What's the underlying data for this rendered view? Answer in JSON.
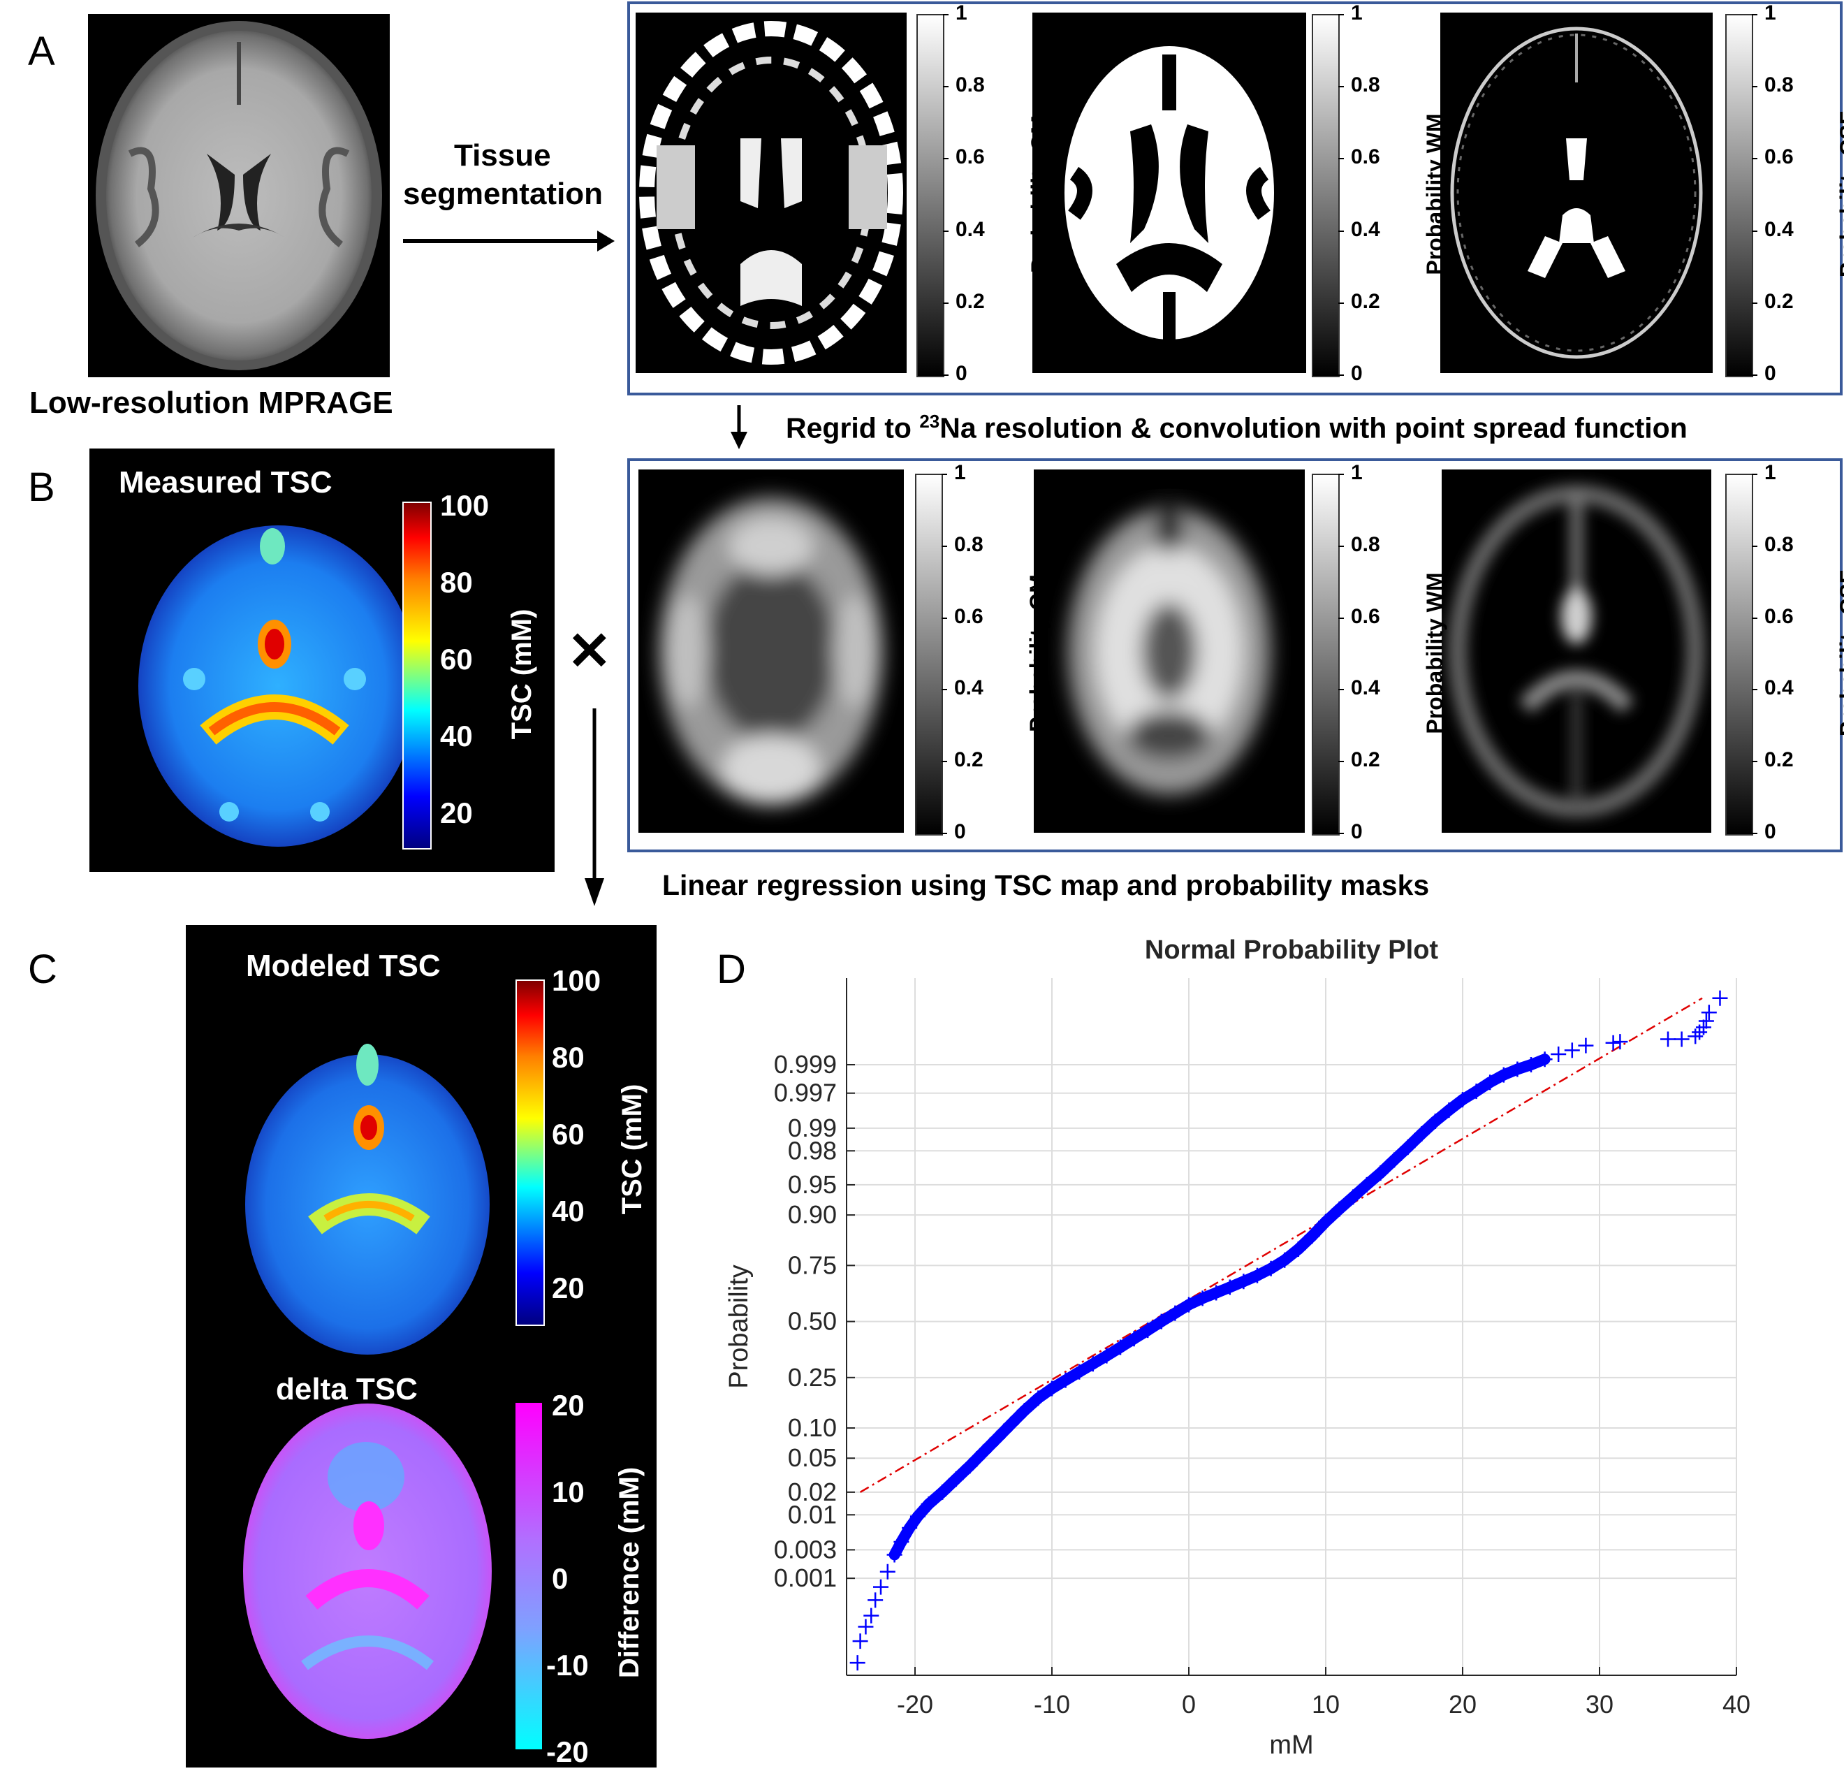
{
  "panels": {
    "A": {
      "letter": "A",
      "mprage_label": "Low-resolution MPRAGE",
      "arrow_label_line1": "Tissue",
      "arrow_label_line2": "segmentation",
      "maps": [
        {
          "title": "Probability GM"
        },
        {
          "title": "Probability WM"
        },
        {
          "title": "Probability CSF"
        }
      ],
      "colorbar_ticks": [
        "1",
        "0.8",
        "0.6",
        "0.4",
        "0.2",
        "0"
      ]
    },
    "regrid_label_pre": "Regrid to ",
    "regrid_label_sup": "23",
    "regrid_label_post": "Na resolution & convolution with point spread function",
    "B": {
      "letter": "B",
      "title": "Measured TSC",
      "colorbar_title": "TSC (mM)",
      "colorbar_ticks": [
        "100",
        "80",
        "60",
        "40",
        "20"
      ],
      "multiply_symbol": "✕",
      "maps": [
        {
          "title": "Probability GM"
        },
        {
          "title": "Probability WM"
        },
        {
          "title": "Probability CSF"
        }
      ]
    },
    "regression_label": "Linear regression using TSC map and probability masks",
    "C": {
      "letter": "C",
      "modeled_title": "Modeled TSC",
      "modeled_colorbar_title": "TSC (mM)",
      "modeled_colorbar_ticks": [
        "100",
        "80",
        "60",
        "40",
        "20"
      ],
      "delta_title": "delta TSC",
      "delta_colorbar_title": "Difference (mM)",
      "delta_colorbar_ticks": [
        "20",
        "10",
        "0",
        "-10",
        "-20"
      ]
    },
    "D": {
      "letter": "D"
    }
  },
  "colors": {
    "frame": "#3a5a9a",
    "data_marker": "#0000ff",
    "reference_line": "#e00000"
  },
  "chart_data": {
    "type": "scatter",
    "title": "Normal Probability Plot",
    "xlabel": "mM",
    "ylabel": "Probability",
    "xlim": [
      -25,
      40
    ],
    "x_ticks": [
      -20,
      -10,
      0,
      10,
      20,
      30,
      40
    ],
    "y_ticks": [
      0.001,
      0.003,
      0.01,
      0.02,
      0.05,
      0.1,
      0.25,
      0.5,
      0.75,
      0.9,
      0.95,
      0.98,
      0.99,
      0.997,
      0.999
    ],
    "y_tick_labels": [
      "0.001",
      "0.003",
      "0.01",
      "0.02",
      "0.05",
      "0.10",
      "0.25",
      "0.50",
      "0.75",
      "0.90",
      "0.95",
      "0.98",
      "0.99",
      "0.997",
      "0.999"
    ],
    "y_scale": "normal-probability",
    "grid": true,
    "series": [
      {
        "marker": "+",
        "points": [
          [
            -24.2,
            2e-05
          ],
          [
            -24.0,
            6e-05
          ],
          [
            -23.6,
            0.00012
          ],
          [
            -23.2,
            0.0002
          ],
          [
            -22.9,
            0.0004
          ],
          [
            -22.5,
            0.0007
          ],
          [
            -22.0,
            0.0013
          ],
          [
            -21.5,
            0.0025
          ],
          [
            -21.0,
            0.004
          ],
          [
            -20.4,
            0.0065
          ],
          [
            -19.8,
            0.0095
          ],
          [
            -19.0,
            0.014
          ],
          [
            -18.0,
            0.02
          ],
          [
            -17.0,
            0.029
          ],
          [
            -16.0,
            0.041
          ],
          [
            -15.0,
            0.058
          ],
          [
            -14.0,
            0.08
          ],
          [
            -13.0,
            0.108
          ],
          [
            -12.0,
            0.142
          ],
          [
            -11.0,
            0.178
          ],
          [
            -10.0,
            0.21
          ],
          [
            -9.0,
            0.24
          ],
          [
            -8.0,
            0.272
          ],
          [
            -7.0,
            0.305
          ],
          [
            -6.0,
            0.34
          ],
          [
            -5.0,
            0.378
          ],
          [
            -4.0,
            0.418
          ],
          [
            -3.0,
            0.458
          ],
          [
            -2.0,
            0.5
          ],
          [
            -1.0,
            0.54
          ],
          [
            0.0,
            0.58
          ],
          [
            1.0,
            0.61
          ],
          [
            2.0,
            0.635
          ],
          [
            3.0,
            0.66
          ],
          [
            4.0,
            0.685
          ],
          [
            5.0,
            0.71
          ],
          [
            6.0,
            0.738
          ],
          [
            7.0,
            0.77
          ],
          [
            8.0,
            0.808
          ],
          [
            9.0,
            0.848
          ],
          [
            10.0,
            0.885
          ],
          [
            11.0,
            0.912
          ],
          [
            12.0,
            0.933
          ],
          [
            13.0,
            0.95
          ],
          [
            14.0,
            0.963
          ],
          [
            15.0,
            0.974
          ],
          [
            16.0,
            0.982
          ],
          [
            17.0,
            0.988
          ],
          [
            18.0,
            0.992
          ],
          [
            19.0,
            0.9945
          ],
          [
            20.0,
            0.9962
          ],
          [
            21.0,
            0.9972
          ],
          [
            22.0,
            0.998
          ],
          [
            23.0,
            0.9985
          ],
          [
            24.0,
            0.9988
          ],
          [
            25.0,
            0.999
          ],
          [
            26.0,
            0.9992
          ],
          [
            27.0,
            0.99935
          ],
          [
            28.0,
            0.99945
          ],
          [
            29.0,
            0.99955
          ],
          [
            31.0,
            0.9996
          ],
          [
            31.5,
            0.99962
          ],
          [
            35.0,
            0.99966
          ],
          [
            36.0,
            0.99966
          ],
          [
            37.0,
            0.9997
          ],
          [
            37.3,
            0.99975
          ],
          [
            37.6,
            0.9998
          ],
          [
            37.8,
            0.99985
          ],
          [
            38.0,
            0.9999
          ],
          [
            38.8,
            0.99995
          ]
        ]
      }
    ],
    "reference_line": {
      "x": [
        -24.0,
        37.5
      ],
      "y": [
        0.02,
        0.99995
      ]
    }
  }
}
